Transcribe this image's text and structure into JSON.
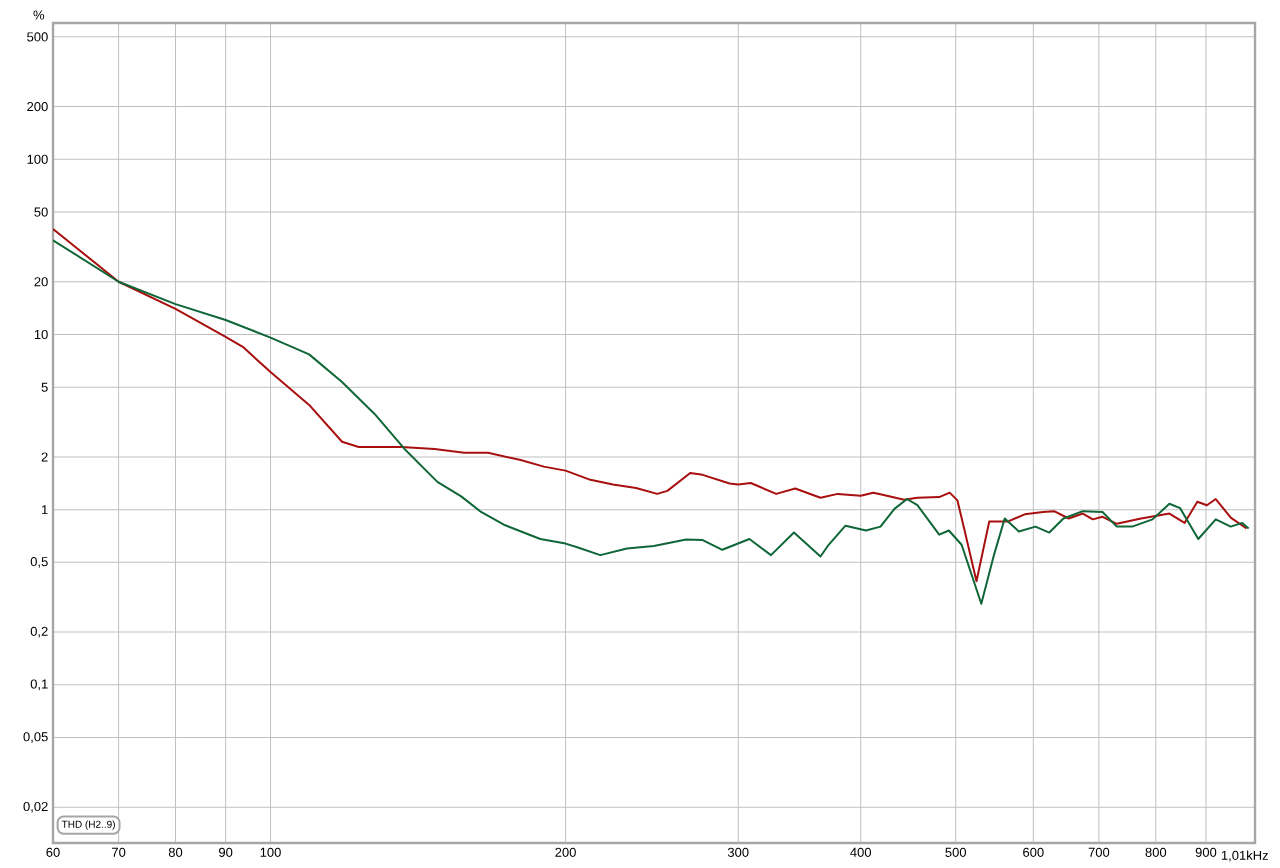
{
  "chart_data": {
    "type": "line",
    "xlabel": "1,01kHz",
    "ylabel": "%",
    "annotations": [
      "THD (H2..9)"
    ],
    "log": "xy",
    "grid": true,
    "marker": "none",
    "line_style": "solid",
    "xlim": [
      60,
      1010
    ],
    "ylim": [
      0.0125,
      600
    ],
    "xticks": [
      60,
      70,
      80,
      90,
      100,
      200,
      300,
      400,
      500,
      600,
      700,
      800,
      900
    ],
    "yticks": [
      {
        "value": 0.02,
        "label": "0,02"
      },
      {
        "value": 0.05,
        "label": "0,05"
      },
      {
        "value": 0.1,
        "label": "0,1"
      },
      {
        "value": 0.2,
        "label": "0,2"
      },
      {
        "value": 0.5,
        "label": "0,5"
      },
      1,
      2,
      5,
      10,
      20,
      50,
      100,
      200,
      500
    ],
    "series": [
      {
        "color": "#a80f0f",
        "x": [
          60,
          70,
          80,
          90,
          93.7,
          100,
          109.5,
          118.3,
          123,
          136,
          147,
          157.6,
          166.7,
          180,
          190,
          200,
          212,
          223.5,
          236,
          248,
          254,
          268,
          276,
          294,
          300,
          309,
          328,
          343,
          364,
          379,
          400,
          412,
          420,
          443,
          457,
          481,
          493,
          502,
          510,
          525,
          541,
          565,
          588,
          614,
          630,
          652,
          674,
          690,
          706,
          730,
          773,
          826,
          856,
          882,
          902,
          921,
          954,
          990
        ],
        "values": [
          40,
          20,
          14,
          9.7,
          8.5,
          6.1,
          3.96,
          2.44,
          2.28,
          2.28,
          2.22,
          2.11,
          2.11,
          1.92,
          1.76,
          1.67,
          1.48,
          1.39,
          1.33,
          1.23,
          1.28,
          1.62,
          1.58,
          1.41,
          1.39,
          1.42,
          1.23,
          1.32,
          1.17,
          1.23,
          1.2,
          1.25,
          1.22,
          1.14,
          1.17,
          1.18,
          1.25,
          1.13,
          0.78,
          0.39,
          0.855,
          0.855,
          0.94,
          0.97,
          0.98,
          0.89,
          0.95,
          0.88,
          0.91,
          0.83,
          0.89,
          0.95,
          0.84,
          1.11,
          1.06,
          1.15,
          0.9,
          0.78
        ]
      },
      {
        "color": "#0f6637",
        "x": [
          60,
          70,
          80,
          90,
          100,
          109.5,
          118.3,
          127.7,
          137,
          148,
          156.5,
          164,
          173,
          188.5,
          200,
          205.5,
          217,
          231,
          246,
          265.5,
          276,
          289,
          308,
          324,
          342,
          364,
          371,
          386,
          405,
          419,
          433,
          446,
          457,
          481,
          492,
          507,
          531,
          547,
          561,
          580,
          603,
          623,
          644,
          674,
          706,
          730,
          757,
          794,
          826,
          847,
          884,
          921,
          954,
          980,
          995
        ],
        "values": [
          34.5,
          20,
          14.9,
          12.1,
          9.6,
          7.7,
          5.35,
          3.52,
          2.22,
          1.44,
          1.19,
          0.97,
          0.82,
          0.68,
          0.64,
          0.61,
          0.55,
          0.6,
          0.62,
          0.675,
          0.67,
          0.59,
          0.68,
          0.55,
          0.74,
          0.54,
          0.63,
          0.81,
          0.76,
          0.8,
          1.01,
          1.15,
          1.06,
          0.72,
          0.76,
          0.63,
          0.29,
          0.55,
          0.89,
          0.75,
          0.8,
          0.74,
          0.89,
          0.98,
          0.97,
          0.8,
          0.8,
          0.88,
          1.08,
          1.02,
          0.68,
          0.88,
          0.8,
          0.84,
          0.78
        ]
      }
    ]
  }
}
